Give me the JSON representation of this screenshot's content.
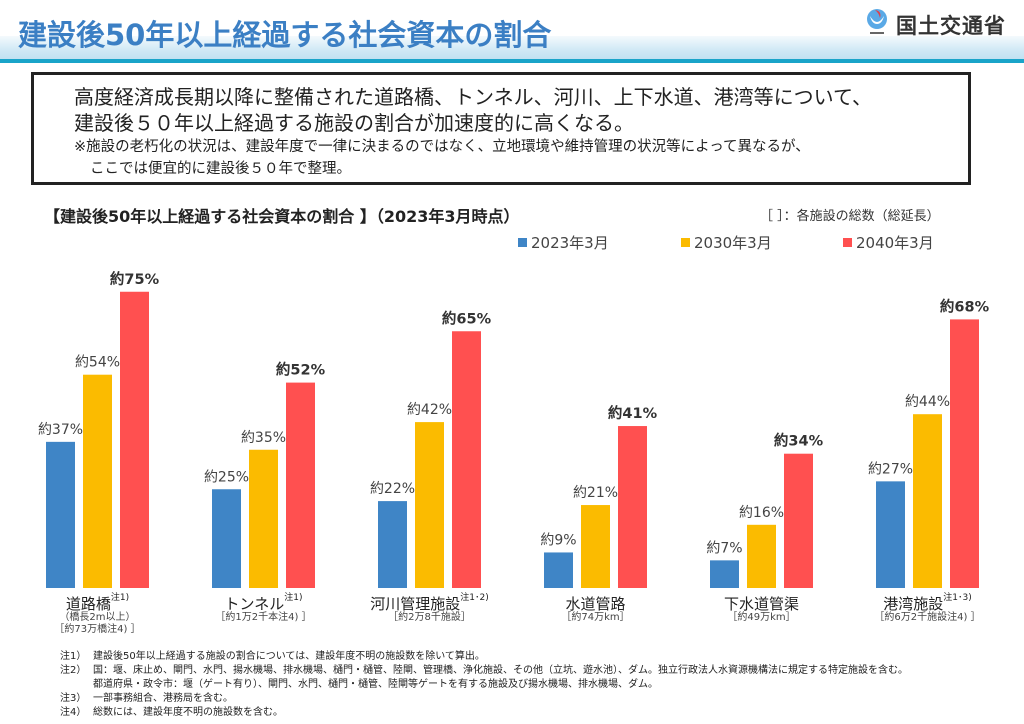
{
  "header": {
    "title": "建設後50年以上経過する社会資本の割合",
    "ministry": "国土交通省",
    "logo_icon": "mlit-logo-icon",
    "colors": {
      "title": "#3b7fc4",
      "band": "#cfe8f5",
      "line": "#19a4c9"
    }
  },
  "summary": {
    "line1": "高度経済成長期以降に整備された道路橋、トンネル、河川、上下水道、港湾等について、",
    "line2": "建設後５０年以上経過する施設の割合が加速度的に高くなる。",
    "note_line1": "※施設の老朽化の状況は、建設年度で一律に決まるのではなく、立地環境や維持管理の状況等によって異なるが、",
    "note_line2": "ここでは便宜的に建設後５０年で整理。"
  },
  "bracket_note": "［ ］：各施設の総数（総延長）",
  "chart_data": {
    "type": "bar",
    "title": "【建設後50年以上経過する社会資本の割合 】（2023年3月時点）",
    "xlabel": "",
    "ylabel": "",
    "ylim": [
      0,
      80
    ],
    "grid": false,
    "legend_position": "top-right",
    "categories": [
      "道路橋",
      "トンネル",
      "河川管理施設",
      "水道管路",
      "下水道管渠",
      "港湾施設"
    ],
    "category_notes": [
      "注1)",
      "注1)",
      "注1･2)",
      "",
      "",
      "注1･3)"
    ],
    "category_subs": [
      [
        "（橋長2m以上）",
        "［約73万橋注4) ］"
      ],
      [
        "［約1万2千本注4) ］"
      ],
      [
        "［約2万8千施設］"
      ],
      [
        "［約74万km］"
      ],
      [
        "［約49万km］"
      ],
      [
        "［約6万2千施設注4) ］"
      ]
    ],
    "series": [
      {
        "name": "2023年3月",
        "color": "#3f85c6",
        "values": [
          37,
          25,
          22,
          9,
          7,
          27
        ]
      },
      {
        "name": "2030年3月",
        "color": "#fbbb00",
        "values": [
          54,
          35,
          42,
          21,
          16,
          44
        ]
      },
      {
        "name": "2040年3月",
        "color": "#ff5050",
        "values": [
          75,
          52,
          65,
          41,
          34,
          68
        ]
      }
    ],
    "label_prefix": "約",
    "label_suffix": "%"
  },
  "notes": [
    {
      "key": "注1）",
      "text": "建設後50年以上経過する施設の割合については、建設年度不明の施設数を除いて算出。"
    },
    {
      "key": "注2）",
      "text": "国：堰、床止め、閘門、水門、揚水機場、排水機場、樋門・樋管、陸閘、管理橋、浄化施設、その他（立坑、遊水池）、ダム。独立行政法人水資源機構法に規定する特定施設を含む。",
      "cont": "都道府県・政令市：堰（ゲート有り）、閘門、水門、樋門・樋管、陸閘等ゲートを有する施設及び揚水機場、排水機場、ダム。"
    },
    {
      "key": "注3）",
      "text": "一部事務組合、港務局を含む。"
    },
    {
      "key": "注4）",
      "text": "総数には、建設年度不明の施設数を含む。"
    }
  ]
}
